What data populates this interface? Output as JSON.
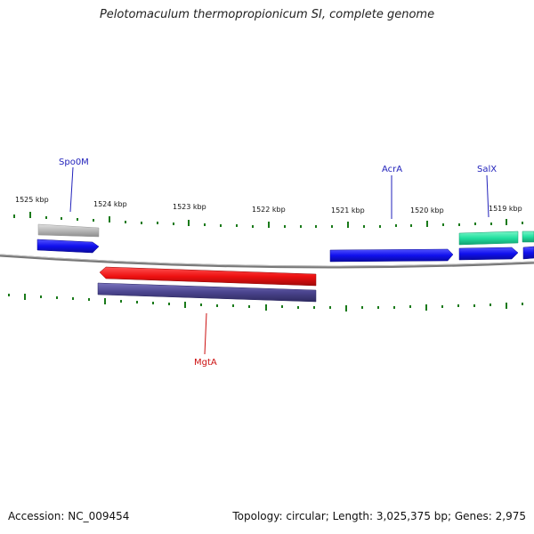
{
  "title": "Pelotomaculum thermopropionicum SI, complete genome",
  "footer": {
    "accession": "Accession: NC_009454",
    "summary": "Topology: circular; Length: 3,025,375 bp; Genes: 2,975"
  },
  "colors": {
    "forward_cds": "#1010ee",
    "reverse_cds": "#ee1010",
    "reverse_gene": "#4a448e",
    "grey_gene": "#b8b8b8",
    "green_gene": "#22e0a0",
    "tick": "#1a7a1a",
    "backbone": "#808080"
  },
  "ruler": {
    "labels": [
      "1525 kbp",
      "1524 kbp",
      "1523 kbp",
      "1522 kbp",
      "1521 kbp",
      "1520 kbp",
      "1519 kbp"
    ]
  },
  "genes": {
    "spo0m": "Spo0M",
    "acra": "AcrA",
    "salx": "SalX",
    "mgta": "MgtA"
  }
}
